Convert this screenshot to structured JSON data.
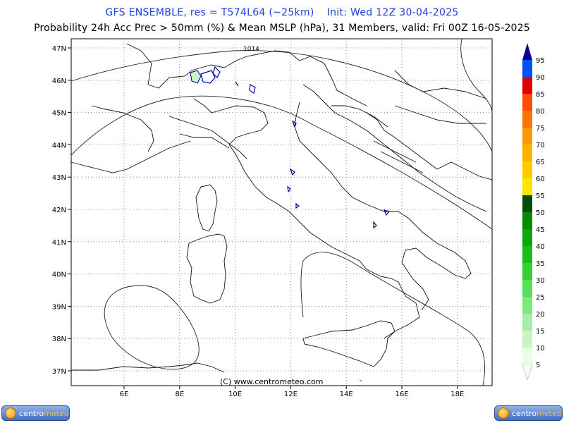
{
  "header": {
    "line1": "GFS ENSEMBLE, res = T574L64 (~25km)",
    "init": "Init: Wed 12Z 30-04-2025",
    "line2": "Probability 24h Acc Prec > 50mm (%) & Mean MSLP (hPa), 31 Members, valid: Fri 00Z 16-05-2025"
  },
  "map": {
    "lat_labels": [
      "47N",
      "46N",
      "45N",
      "44N",
      "43N",
      "42N",
      "41N",
      "40N",
      "39N",
      "38N",
      "37N"
    ],
    "lon_labels": [
      "6E",
      "8E",
      "10E",
      "12E",
      "14E",
      "16E",
      "18E"
    ],
    "isobar_label": "1014",
    "copyright": "(C) www.centrometeo.com"
  },
  "legend": {
    "values": [
      "5",
      "10",
      "15",
      "20",
      "25",
      "30",
      "35",
      "40",
      "45",
      "50",
      "55",
      "60",
      "65",
      "70",
      "75",
      "80",
      "85",
      "90",
      "95"
    ],
    "colors": [
      "#e6ffe6",
      "#c8f5c8",
      "#a5eea5",
      "#80e680",
      "#5cdc5c",
      "#35d035",
      "#14c214",
      "#0aa80a",
      "#058a05",
      "#024d02",
      "#ffe600",
      "#ffcc00",
      "#ffb300",
      "#ff9900",
      "#ff7300",
      "#ff4d00",
      "#e00000",
      "#0050ff",
      "#00009a"
    ]
  },
  "logos": {
    "text_part1": "centro",
    "text_part2": "meteo"
  }
}
